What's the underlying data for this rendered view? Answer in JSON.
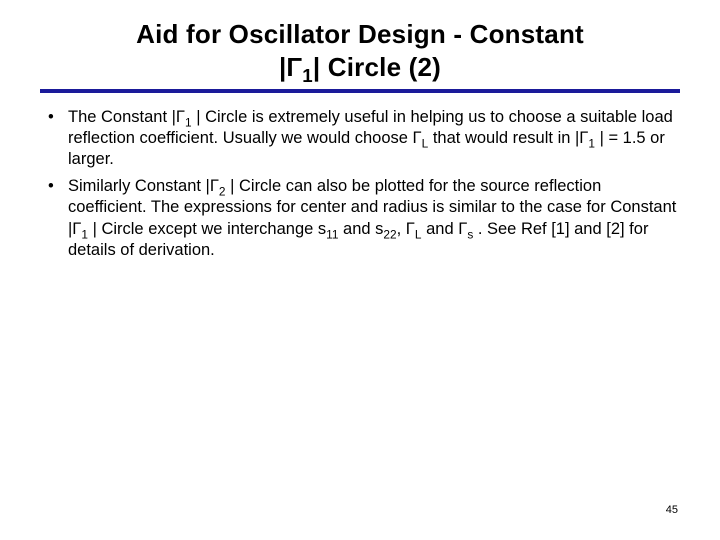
{
  "slide": {
    "title_line1": "Aid for Oscillator Design - Constant",
    "title_line2_pre": "|Γ",
    "title_line2_sub": "1",
    "title_line2_post": "| Circle (2)",
    "rule_color": "#1a1a9a",
    "background_color": "#ffffff",
    "text_color": "#000000",
    "title_fontsize": 26,
    "body_fontsize": 16.5,
    "bullets": [
      {
        "marker": "•",
        "parts": [
          {
            "t": "The Constant |Γ"
          },
          {
            "t": "1",
            "sub": true
          },
          {
            "t": " | Circle is extremely useful in helping us to choose a suitable load reflection coefficient.  Usually we would choose Γ"
          },
          {
            "t": "L",
            "sub": true
          },
          {
            "t": " that would result in |Γ"
          },
          {
            "t": "1",
            "sub": true
          },
          {
            "t": " | = 1.5 or larger."
          }
        ]
      },
      {
        "marker": "•",
        "parts": [
          {
            "t": "Similarly Constant |Γ"
          },
          {
            "t": "2",
            "sub": true
          },
          {
            "t": " | Circle can also be plotted for the source reflection coefficient.  The expressions for center and radius is similar to the case for Constant |Γ"
          },
          {
            "t": "1",
            "sub": true
          },
          {
            "t": " | Circle except we interchange s"
          },
          {
            "t": "11",
            "sub": true
          },
          {
            "t": " and s"
          },
          {
            "t": "22",
            "sub": true
          },
          {
            "t": ", Γ"
          },
          {
            "t": "L",
            "sub": true
          },
          {
            "t": " and Γ"
          },
          {
            "t": "s",
            "sub": true
          },
          {
            "t": " .  See Ref [1] and [2] for details of derivation."
          }
        ]
      }
    ],
    "page_number": "45"
  }
}
